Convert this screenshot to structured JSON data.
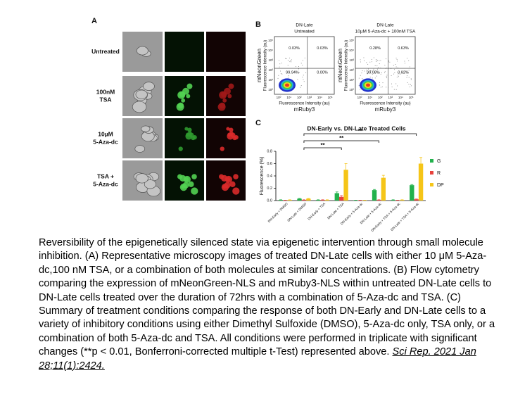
{
  "panel_a": {
    "label": "A",
    "rows": [
      [
        "Untreated"
      ],
      [
        "100nM",
        "TSA"
      ],
      [
        "10µM",
        "5-Aza-dc"
      ],
      [
        "TSA +",
        "5-Aza-dc"
      ]
    ]
  },
  "panel_b": {
    "label": "B",
    "y_label": [
      "mNeonGreen",
      "Fluorescence Intensity (au)"
    ],
    "x_label": [
      "Fluorescence Intensity (au)",
      "mRuby3"
    ],
    "ticks": [
      "10⁰",
      "10¹",
      "10²",
      "10³",
      "10⁴",
      "10⁵"
    ],
    "plots": [
      {
        "title": [
          "DN-Late",
          "Untreated"
        ],
        "quadrants": [
          "0.03%",
          "0.03%",
          "99.94%",
          "0.00%"
        ]
      },
      {
        "title": [
          "DN-Late",
          "10µM 5-Aza-dc + 100nM TSA"
        ],
        "quadrants": [
          "0.28%",
          "0.63%",
          "99.08%",
          "0.02%"
        ]
      }
    ]
  },
  "chart_data": {
    "type": "bar",
    "panel_label": "C",
    "title": "DN-Early vs. DN-Late Treated Cells",
    "y_label": "Fluorescence (%)",
    "categories": [
      "DN-Early + DMSO",
      "DN-Late + DMSO",
      "DN-Early + TSA",
      "DN-Late + TSA",
      "DN-Early + 5-Aza-dc",
      "DN-Late + 5-Aza-dc",
      "DN-Early + TSA + 5-Aza-dc",
      "DN-Late + TSA + 5-Aza-dc"
    ],
    "series": [
      {
        "name": "G",
        "color": "#22b14c",
        "values": [
          0.01,
          0.03,
          0.01,
          0.12,
          0.005,
          0.17,
          0.01,
          0.25
        ],
        "errors": [
          0.003,
          0.005,
          0.003,
          0.02,
          0.002,
          0.01,
          0.003,
          0.01
        ]
      },
      {
        "name": "R",
        "color": "#e8413c",
        "values": [
          0.005,
          0.01,
          0.01,
          0.06,
          0.005,
          0.01,
          0.005,
          0.02
        ],
        "errors": [
          0.002,
          0.003,
          0.003,
          0.02,
          0.002,
          0.003,
          0.002,
          0.005
        ]
      },
      {
        "name": "DP",
        "color": "#f5c518",
        "values": [
          0.01,
          0.03,
          0.01,
          0.5,
          0.005,
          0.37,
          0.01,
          0.6
        ],
        "errors": [
          0.003,
          0.005,
          0.003,
          0.1,
          0.002,
          0.04,
          0.003,
          0.1
        ]
      }
    ],
    "annotations": [
      "**",
      "**",
      "**"
    ],
    "ylim": [
      0,
      0.8
    ],
    "yticks": [
      {
        "value": 0,
        "label": "0.0"
      },
      {
        "value": 0.2,
        "label": "0.2"
      },
      {
        "value": 0.4,
        "label": "0.4"
      },
      {
        "value": 0.6,
        "label": "0.6"
      },
      {
        "value": 0.8,
        "label": "0.8"
      }
    ]
  },
  "caption": {
    "text": "Reversibility of the epigenetically silenced state via epigenetic intervention through small molecule inhibition. (A) Representative microscopy images of treated DN-Late cells with either 10 μM 5-Aza-dc,100 nM TSA, or a combination of both molecules at similar concentrations. (B) Flow cytometry comparing the expression of mNeonGreen-NLS and mRuby3-NLS within untreated DN-Late cells to DN-Late cells treated over the duration of 72hrs with a combination of 5-Aza-dc and TSA. (C) Summary of treatment conditions comparing the response of both DN-Early and DN-Late cells to a variety of inhibitory conditions using either Dimethyl Sulfoxide (DMSO), 5-Aza-dc only, TSA only, or a combination of both 5-Aza-dc and TSA. All conditions were performed in triplicate with significant changes (**p < 0.01, Bonferroni-corrected multiple t-Test) represented above.",
    "citation": "Sci Rep. 2021 Jan 28;11(1):2424."
  }
}
